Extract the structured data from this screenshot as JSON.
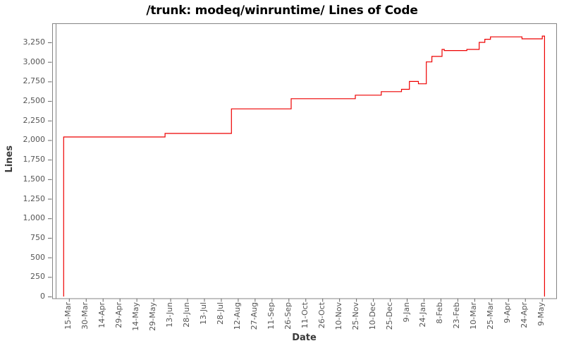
{
  "chart_data": {
    "type": "line",
    "step": "step-after",
    "title": "/trunk: modeq/winruntime/ Lines of Code",
    "xlabel": "Date",
    "ylabel": "Lines",
    "grid": false,
    "legend": false,
    "background": "#ffffff",
    "panel_border_color": "#848484",
    "tick_mark_color": "#666666",
    "axis_text_color": "#555555",
    "axis_title_color": "#3a3a3a",
    "title_color": "#000000",
    "ylim": [
      0,
      3500
    ],
    "x_domain_days": [
      -15,
      432
    ],
    "y_ticks": {
      "values": [
        0,
        250,
        500,
        750,
        1000,
        1250,
        1500,
        1750,
        2000,
        2250,
        2500,
        2750,
        3000,
        3250
      ],
      "labels": [
        "0",
        "250",
        "500",
        "750",
        "1,000",
        "1,250",
        "1,500",
        "1,750",
        "2,000",
        "2,250",
        "2,500",
        "2,750",
        "3,000",
        "3,250"
      ]
    },
    "x_ticks": {
      "interval_days": 15,
      "labels": [
        "15-Mar",
        "30-Mar",
        "14-Apr",
        "29-Apr",
        "14-May",
        "29-May",
        "13-Jun",
        "28-Jun",
        "13-Jul",
        "28-Jul",
        "12-Aug",
        "27-Aug",
        "11-Sep",
        "26-Sep",
        "11-Oct",
        "26-Oct",
        "10-Nov",
        "25-Nov",
        "10-Dec",
        "25-Dec",
        "9-Jan",
        "24-Jan",
        "8-Feb",
        "23-Feb",
        "10-Mar",
        "25-Mar",
        "9-Apr",
        "24-Apr",
        "9-May"
      ]
    },
    "series": [
      {
        "name": "Lines of Code",
        "color": "#ee0000",
        "points": [
          {
            "day": -5,
            "date": "10-Mar",
            "lines": 0
          },
          {
            "day": -5,
            "date": "10-Mar",
            "lines": 2040
          },
          {
            "day": 85,
            "date": "8-Jun",
            "lines": 2085
          },
          {
            "day": 144,
            "date": "6-Aug",
            "lines": 2400
          },
          {
            "day": 197,
            "date": "28-Sep",
            "lines": 2530
          },
          {
            "day": 254,
            "date": "24-Nov",
            "lines": 2575
          },
          {
            "day": 277,
            "date": "17-Dec",
            "lines": 2620
          },
          {
            "day": 295,
            "date": "4-Jan",
            "lines": 2650
          },
          {
            "day": 302,
            "date": "11-Jan",
            "lines": 2750
          },
          {
            "day": 310,
            "date": "19-Jan",
            "lines": 2720
          },
          {
            "day": 317,
            "date": "26-Jan",
            "lines": 3000
          },
          {
            "day": 322,
            "date": "31-Jan",
            "lines": 3070
          },
          {
            "day": 331,
            "date": "9-Feb",
            "lines": 3160
          },
          {
            "day": 333,
            "date": "11-Feb",
            "lines": 3145
          },
          {
            "day": 353,
            "date": "3-Mar",
            "lines": 3160
          },
          {
            "day": 364,
            "date": "14-Mar",
            "lines": 3250
          },
          {
            "day": 369,
            "date": "19-Mar",
            "lines": 3290
          },
          {
            "day": 374,
            "date": "24-Mar",
            "lines": 3320
          },
          {
            "day": 402,
            "date": "21-Apr",
            "lines": 3295
          },
          {
            "day": 420,
            "date": "9-May",
            "lines": 3330
          },
          {
            "day": 422,
            "date": "11-May",
            "lines": 0
          }
        ]
      }
    ]
  }
}
